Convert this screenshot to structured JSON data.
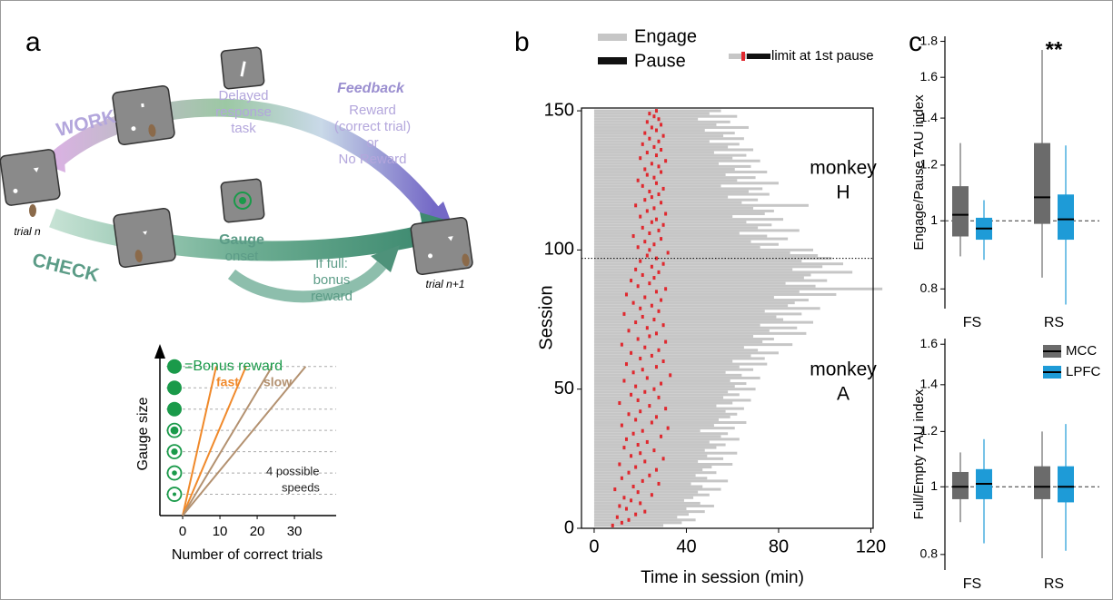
{
  "panels": [
    "a",
    "b",
    "c"
  ],
  "diagram": {
    "work": "WORK",
    "check": "CHECK",
    "delayed": [
      "Delayed",
      "response",
      "task"
    ],
    "feedback": "Feedback",
    "reward": [
      "Reward",
      "(correct trial)",
      "or",
      "No Reward"
    ],
    "gauge": "Gauge",
    "onset": "onset",
    "bonus": [
      "If full:",
      "bonus",
      "reward"
    ],
    "trial_n": "trial n",
    "trial_n1": "trial n+1"
  },
  "chart_data": [
    {
      "type": "line",
      "xlabel": "Number of correct trials",
      "ylabel": "Gauge size",
      "xlim": [
        -4.4,
        41.2
      ],
      "xticks": [
        0,
        10,
        20,
        30
      ],
      "ylim": [
        0,
        7.8
      ],
      "yticks": [
        1,
        2,
        3,
        4,
        5,
        6,
        7
      ],
      "series": [
        {
          "color": "#f0892a",
          "x": [
            0,
            9
          ],
          "values": [
            0,
            7
          ]
        },
        {
          "color": "#f0892a",
          "x": [
            0,
            17
          ],
          "values": [
            0,
            7
          ]
        },
        {
          "color": "#b39170",
          "x": [
            0,
            24
          ],
          "values": [
            0,
            7
          ]
        },
        {
          "color": "#b39170",
          "x": [
            0,
            33
          ],
          "values": [
            0,
            7
          ]
        }
      ],
      "annotations": [
        "=Bonus reward",
        "fast",
        "slow",
        "4 possible",
        "speeds"
      ]
    },
    {
      "type": "raster",
      "xlabel": "Time in session (min)",
      "ylabel": "Session",
      "xlim": [
        -5.5,
        121
      ],
      "xticks": [
        0,
        40,
        80,
        120
      ],
      "ylim": [
        0,
        151
      ],
      "yticks": [
        0,
        50,
        100,
        150
      ],
      "hline": 97,
      "annotations": [
        [
          "monkey",
          "H"
        ],
        [
          "monkey",
          "A"
        ]
      ],
      "y": [
        1,
        2,
        3,
        4,
        5,
        6,
        7,
        8,
        9,
        10,
        11,
        12,
        13,
        14,
        15,
        16,
        17,
        18,
        19,
        20,
        21,
        22,
        23,
        24,
        25,
        26,
        27,
        28,
        29,
        30,
        31,
        32,
        33,
        34,
        35,
        36,
        37,
        38,
        39,
        40,
        41,
        42,
        43,
        44,
        45,
        46,
        47,
        48,
        49,
        50,
        51,
        52,
        53,
        54,
        55,
        56,
        57,
        58,
        59,
        60,
        61,
        62,
        63,
        64,
        65,
        66,
        67,
        68,
        69,
        70,
        71,
        72,
        73,
        74,
        75,
        76,
        77,
        78,
        79,
        80,
        81,
        82,
        83,
        84,
        85,
        86,
        87,
        88,
        89,
        90,
        91,
        92,
        93,
        94,
        95,
        96,
        97,
        98,
        99,
        100,
        101,
        102,
        103,
        104,
        105,
        106,
        107,
        108,
        109,
        110,
        111,
        112,
        113,
        114,
        115,
        116,
        117,
        118,
        119,
        120,
        121,
        122,
        123,
        124,
        125,
        126,
        127,
        128,
        129,
        130,
        131,
        132,
        133,
        134,
        135,
        136,
        137,
        138,
        139,
        140,
        141,
        142,
        143,
        144,
        145,
        146,
        147,
        148,
        149,
        150
      ],
      "series": [
        {
          "name": "Engage",
          "color": "#c6c6c6",
          "values": [
            30,
            38,
            44,
            36,
            41,
            48,
            40,
            52,
            46,
            39,
            43,
            50,
            45,
            55,
            47,
            42,
            58,
            49,
            44,
            53,
            47,
            51,
            60,
            45,
            56,
            49,
            62,
            48,
            53,
            57,
            50,
            63,
            55,
            58,
            46,
            61,
            52,
            66,
            54,
            59,
            62,
            57,
            65,
            53,
            60,
            68,
            56,
            63,
            58,
            70,
            61,
            66,
            59,
            72,
            64,
            57,
            69,
            63,
            75,
            60,
            74,
            68,
            80,
            71,
            65,
            86,
            73,
            78,
            69,
            92,
            76,
            88,
            72,
            95,
            82,
            79,
            90,
            74,
            98,
            84,
            87,
            93,
            78,
            105,
            89,
            125,
            96,
            83,
            101,
            91,
            94,
            112,
            86,
            99,
            108,
            90,
            103,
            97,
            85,
            95,
            72,
            80,
            68,
            84,
            75,
            63,
            89,
            71,
            77,
            66,
            82,
            60,
            74,
            78,
            69,
            93,
            64,
            71,
            58,
            76,
            67,
            73,
            55,
            80,
            62,
            70,
            57,
            75,
            61,
            68,
            54,
            72,
            60,
            66,
            52,
            69,
            58,
            63,
            50,
            65,
            56,
            61,
            48,
            67,
            53,
            59,
            45,
            62,
            50,
            55
          ]
        },
        {
          "name": "Pause",
          "color": "#111111"
        },
        {
          "name": "limit at 1st pause",
          "color": "#e0282e",
          "values": [
            8,
            12,
            15,
            10,
            18,
            22,
            14,
            11,
            20,
            16,
            13,
            25,
            19,
            9,
            17,
            28,
            21,
            12,
            24,
            15,
            27,
            18,
            11,
            22,
            30,
            16,
            20,
            26,
            13,
            19,
            23,
            14,
            29,
            17,
            21,
            32,
            12,
            25,
            18,
            27,
            15,
            20,
            31,
            24,
            11,
            19,
            28,
            16,
            22,
            26,
            18,
            29,
            13,
            23,
            33,
            17,
            21,
            27,
            14,
            30,
            20,
            25,
            16,
            28,
            22,
            12,
            31,
            19,
            24,
            27,
            15,
            23,
            30,
            18,
            26,
            21,
            13,
            28,
            20,
            25,
            17,
            29,
            22,
            14,
            27,
            31,
            19,
            24,
            16,
            26,
            21,
            28,
            18,
            25,
            30,
            20,
            27,
            23,
            32,
            24,
            19,
            26,
            22,
            29,
            17,
            24,
            28,
            21,
            30,
            25,
            27,
            20,
            31,
            23,
            26,
            18,
            29,
            22,
            25,
            28,
            24,
            30,
            21,
            27,
            19,
            26,
            23,
            29,
            22,
            28,
            25,
            31,
            20,
            27,
            23,
            29,
            26,
            21,
            28,
            24,
            30,
            22,
            27,
            25,
            29,
            23,
            28,
            26,
            24,
            27
          ]
        }
      ]
    },
    {
      "type": "box",
      "categories": [
        "FS",
        "RS"
      ],
      "yscale": "log",
      "legend": "lower-right",
      "series": [
        {
          "name": "MCC",
          "color": "#6b6b6b"
        },
        {
          "name": "LPFC",
          "color": "#1e9bd7"
        }
      ],
      "panels": [
        {
          "ylabel": "Engage/Pause TAU index",
          "ylim": [
            0.75,
            1.83
          ],
          "yticks": [
            0.8,
            1,
            1.2,
            1.4,
            1.6,
            1.8
          ],
          "refline": 1,
          "annotation": "**",
          "boxes": [
            [
              [
                0.89,
                0.95,
                1.02,
                1.12,
                1.29
              ],
              [
                0.83,
                0.99,
                1.08,
                1.29,
                1.75
              ]
            ],
            [
              [
                0.88,
                0.94,
                0.975,
                1.01,
                1.07
              ],
              [
                0.76,
                0.94,
                1.005,
                1.09,
                1.28
              ]
            ]
          ]
        },
        {
          "ylabel": "Full/Empty TAU index",
          "ylim": [
            0.76,
            1.63
          ],
          "yticks": [
            0.8,
            1,
            1.2,
            1.4,
            1.6
          ],
          "refline": 1,
          "boxes": [
            [
              [
                0.89,
                0.96,
                1.0,
                1.05,
                1.12
              ],
              [
                0.79,
                0.96,
                1.0,
                1.07,
                1.2
              ]
            ],
            [
              [
                0.83,
                0.96,
                1.01,
                1.06,
                1.17
              ],
              [
                0.81,
                0.95,
                1.0,
                1.07,
                1.23
              ]
            ]
          ]
        }
      ]
    }
  ]
}
